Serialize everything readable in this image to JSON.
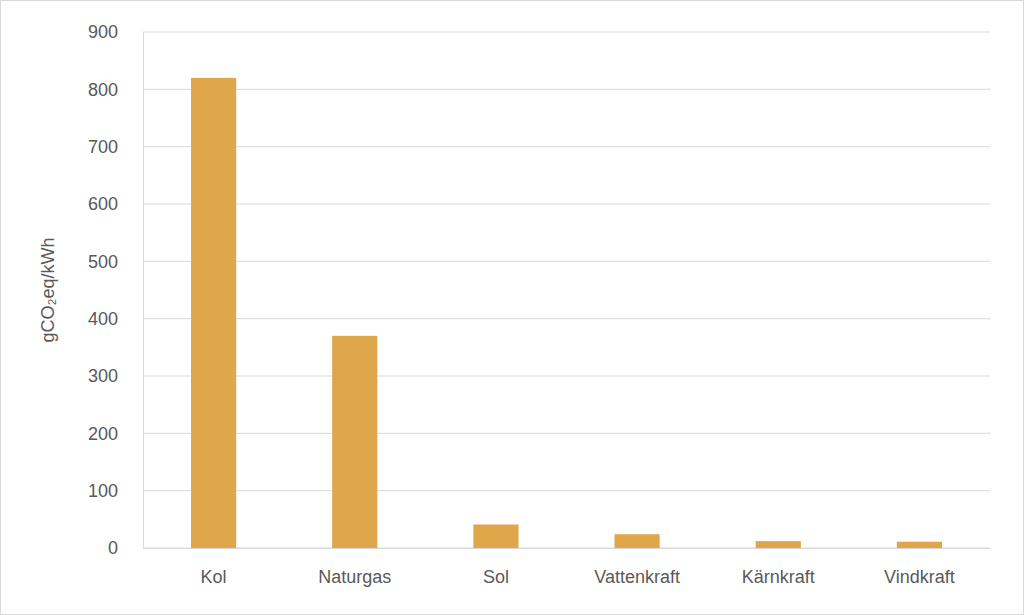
{
  "chart_data": {
    "type": "bar",
    "y_label": "gCO₂eq/kWh",
    "categories": [
      "Kol",
      "Naturgas",
      "Sol",
      "Vattenkraft",
      "Kärnkraft",
      "Vindkraft"
    ],
    "values": [
      820,
      370,
      41,
      24,
      12,
      11
    ],
    "color": "#e0a64a",
    "ylim": [
      0,
      900
    ],
    "yticks": [
      0,
      100,
      200,
      300,
      400,
      500,
      600,
      700,
      800,
      900
    ],
    "grid": true
  }
}
